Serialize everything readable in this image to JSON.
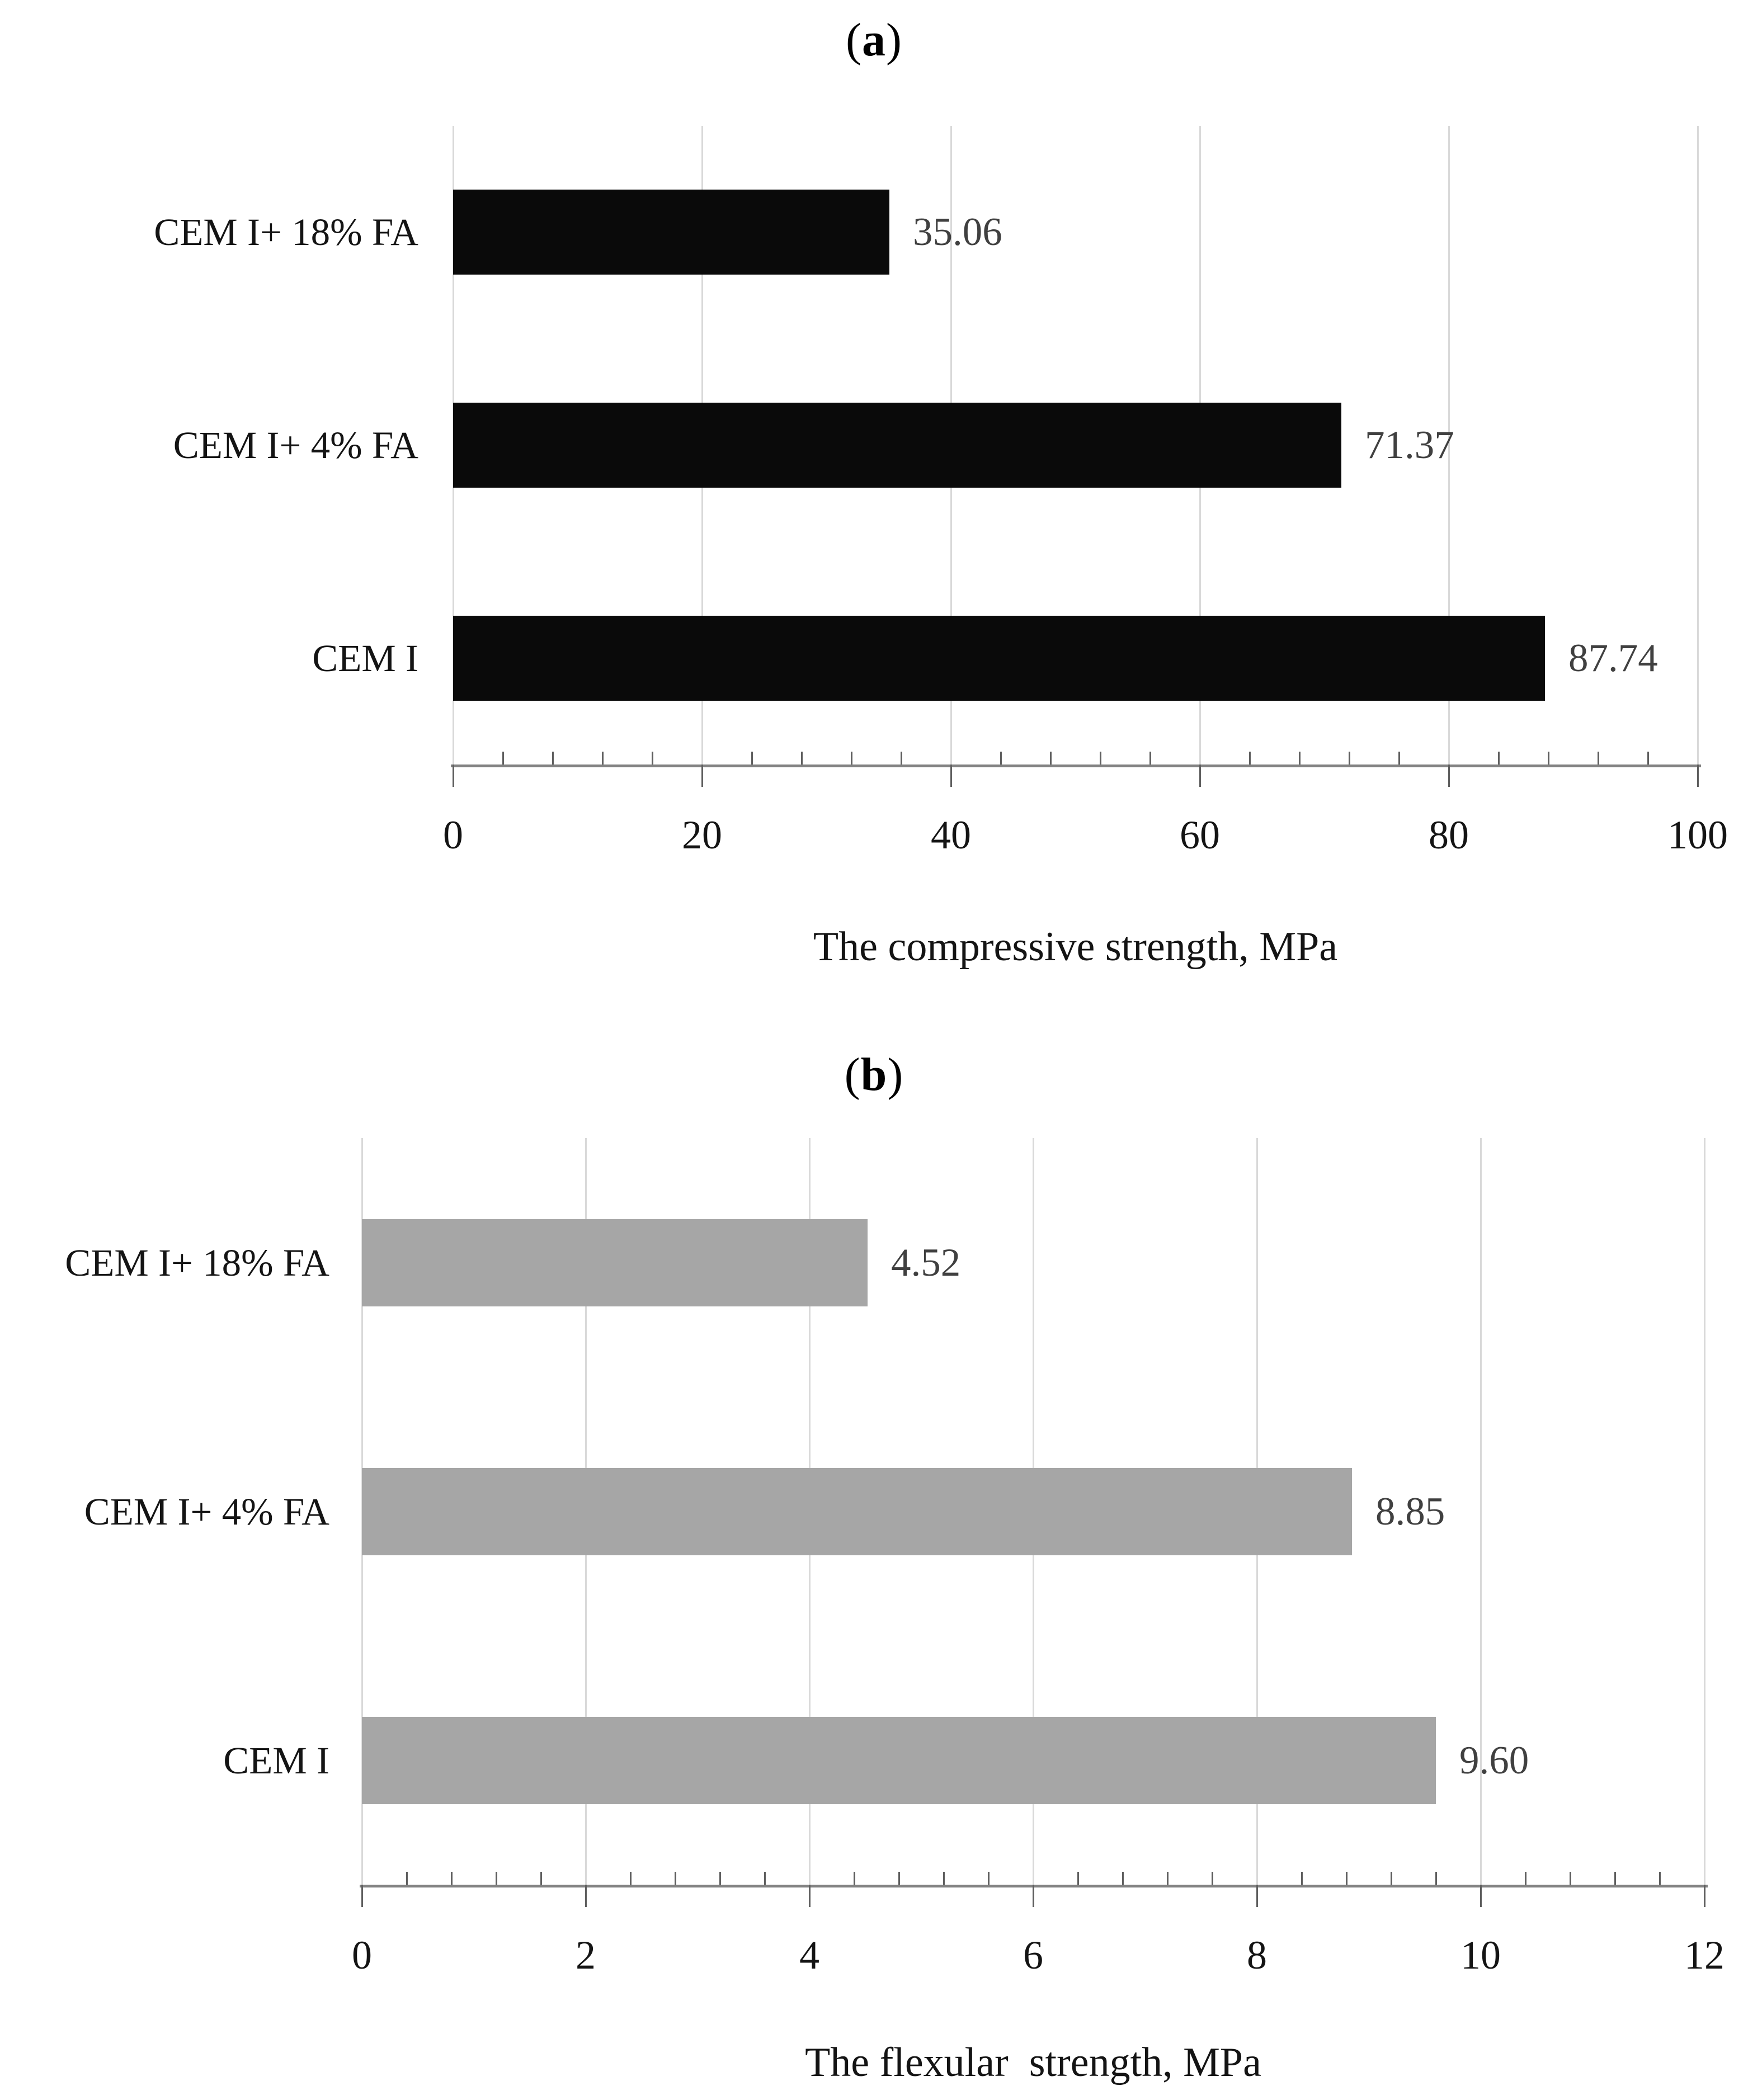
{
  "figure": {
    "background": "#ffffff",
    "text_color": "#141414",
    "grid_color": "#d9d9d9",
    "axis_color": "#828282",
    "tick_color": "#5f5f5f",
    "value_label_color": "#404040"
  },
  "chart_data": [
    {
      "type": "bar",
      "orientation": "horizontal",
      "panel_label": {
        "open": "(",
        "letter": "a",
        "close": ")"
      },
      "categories": [
        "CEM I+ 18% FA",
        "CEM I+ 4% FA",
        "CEM I"
      ],
      "values": [
        35.06,
        71.37,
        87.74
      ],
      "value_labels": [
        "35.06",
        "71.37",
        "87.74"
      ],
      "bar_color": "#0a0a0a",
      "xlabel": "The compressive strength, MPa",
      "xlim": [
        0,
        100
      ],
      "x_major_tick": 20,
      "x_minor_tick": 4,
      "tick_labels": [
        "0",
        "20",
        "40",
        "60",
        "80",
        "100"
      ],
      "grid": true,
      "legend": "none"
    },
    {
      "type": "bar",
      "orientation": "horizontal",
      "panel_label": {
        "open": "(",
        "letter": "b",
        "close": ")"
      },
      "categories": [
        "CEM I+ 18% FA",
        "CEM I+ 4% FA",
        "CEM I"
      ],
      "values": [
        4.52,
        8.85,
        9.6
      ],
      "value_labels": [
        "4.52",
        "8.85",
        "9.60"
      ],
      "bar_color": "#a6a6a6",
      "xlabel": "The flexular  strength, MPa",
      "xlim": [
        0,
        12
      ],
      "x_major_tick": 2,
      "x_minor_tick": 0.4,
      "tick_labels": [
        "0",
        "2",
        "4",
        "6",
        "8",
        "10",
        "12"
      ],
      "grid": true,
      "legend": "none"
    }
  ]
}
